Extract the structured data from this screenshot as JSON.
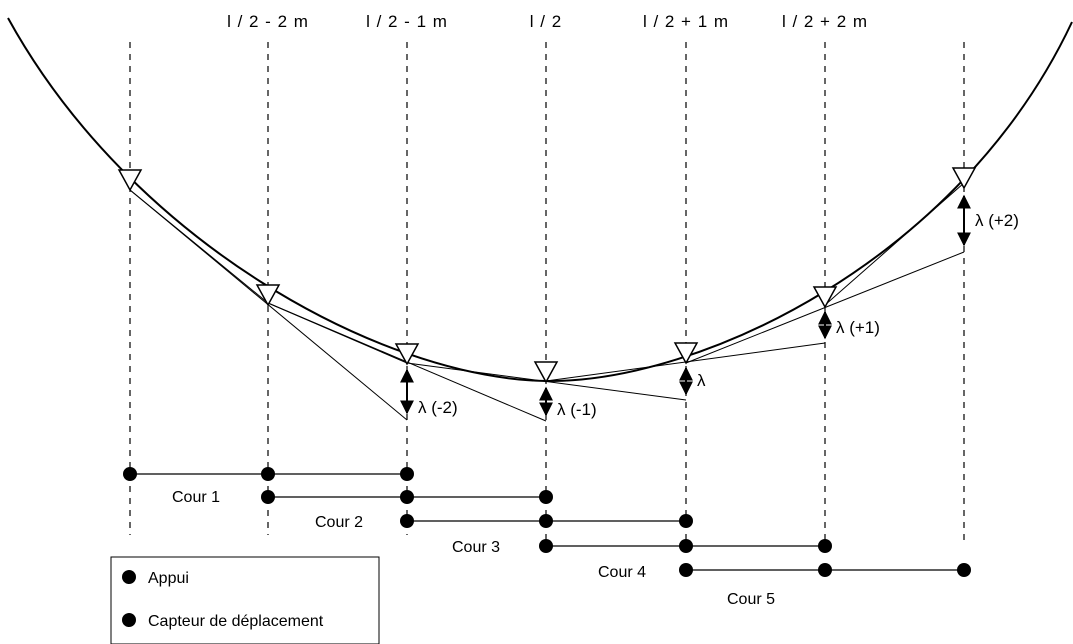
{
  "top_labels": [
    "l / 2 - 2 m",
    "l / 2 - 1 m",
    "l / 2",
    "l / 2 + 1 m",
    "l / 2 + 2 m"
  ],
  "lambda_labels": [
    "λ (-2)",
    "λ (-1)",
    "λ",
    "λ (+1)",
    "λ (+2)"
  ],
  "cour_labels": [
    "Cour 1",
    "Cour 2",
    "Cour 3",
    "Cour 4",
    "Cour 5"
  ],
  "legend": {
    "items": [
      "Appui",
      "Capteur de déplacement"
    ]
  }
}
